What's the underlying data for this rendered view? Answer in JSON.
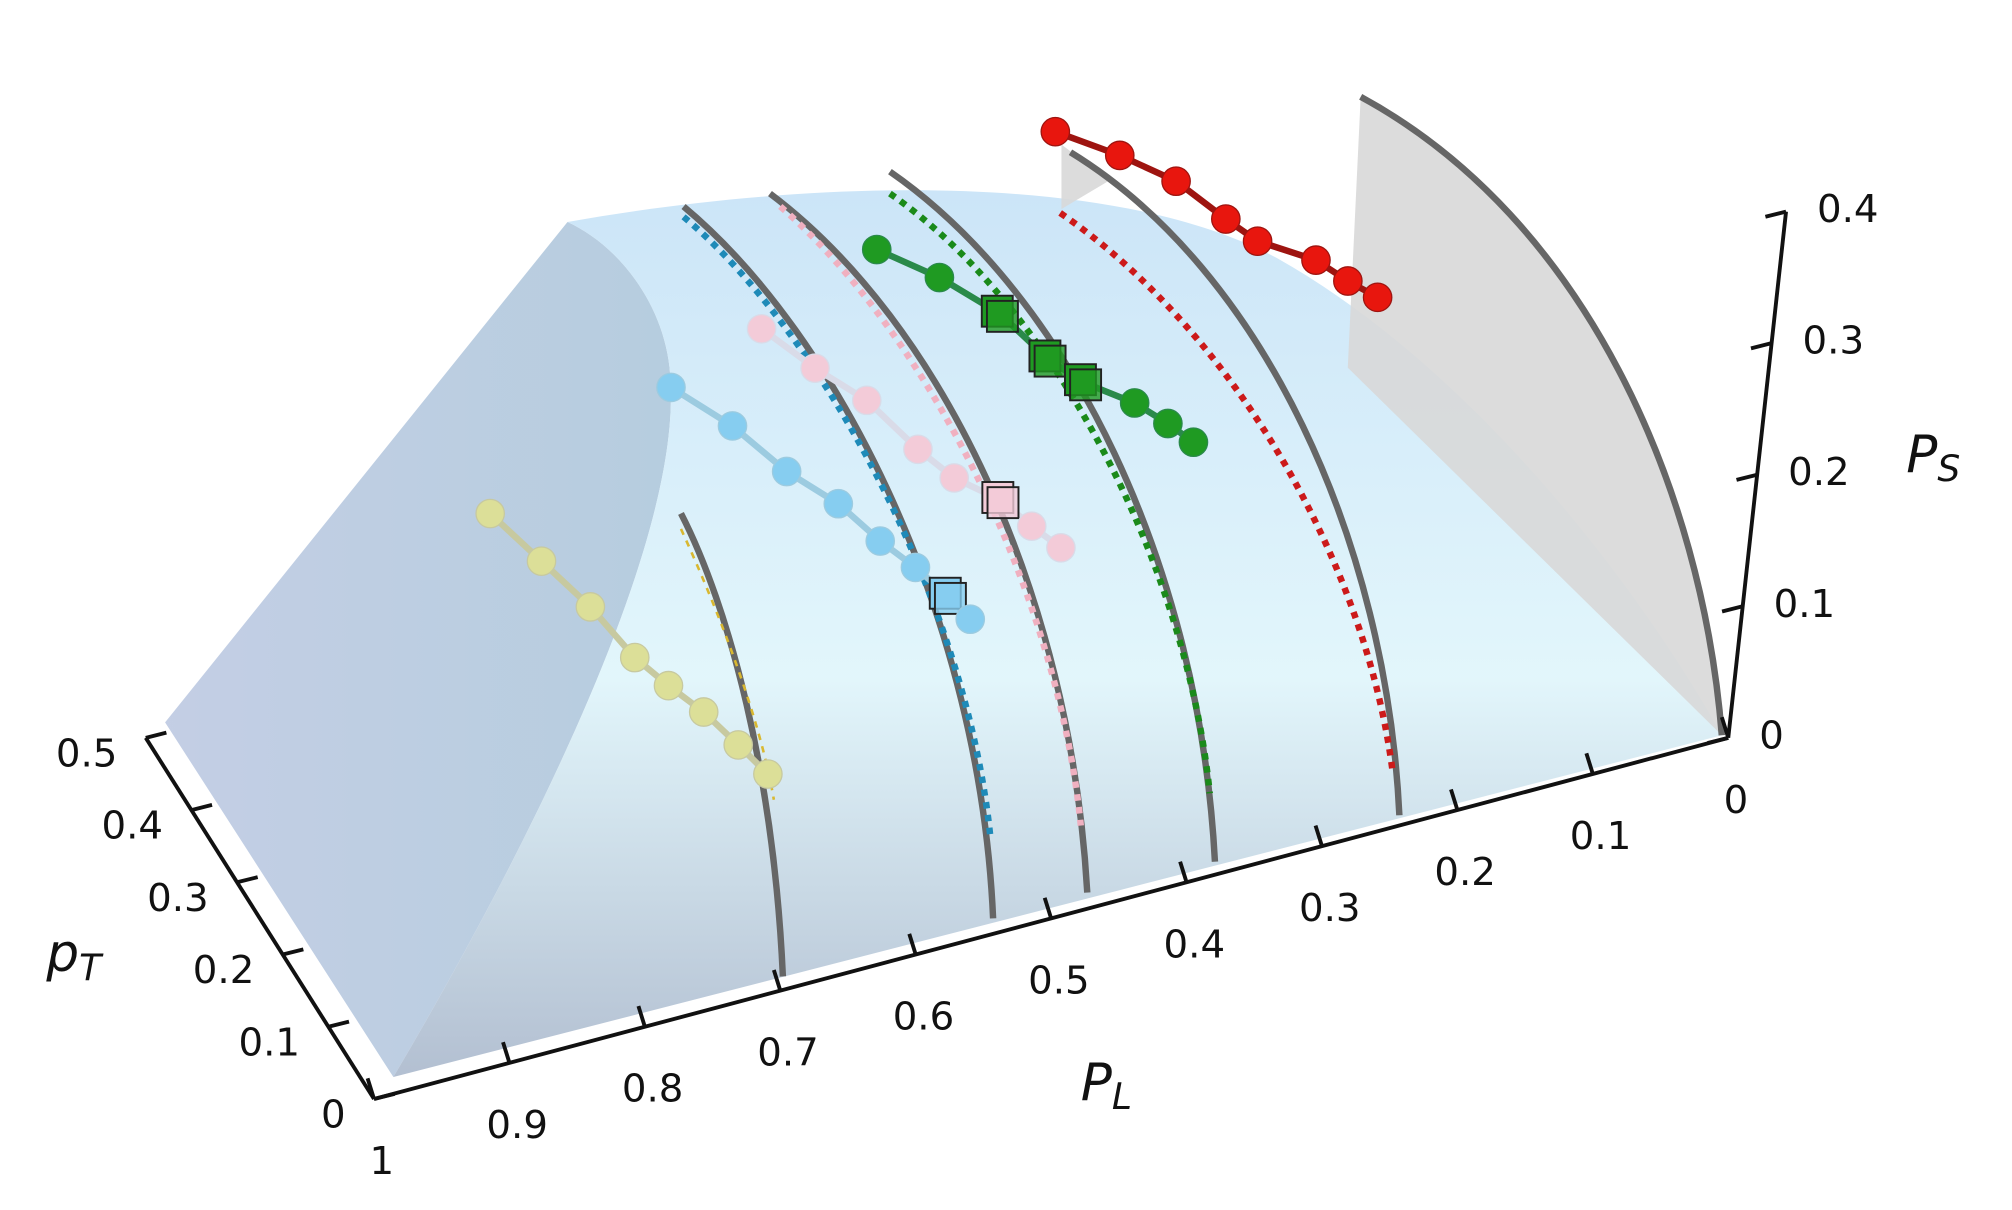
{
  "chart_data": {
    "type": "scatter3d",
    "xlabel": {
      "symbol": "P",
      "subscript": "L"
    },
    "ylabel": {
      "symbol": "p",
      "subscript": "T"
    },
    "zlabel": {
      "symbol": "P",
      "subscript": "S"
    },
    "xlim": [
      0,
      1
    ],
    "xticks": [
      0,
      0.1,
      0.2,
      0.3,
      0.4,
      0.5,
      0.6,
      0.7,
      0.8,
      0.9,
      1
    ],
    "ylim": [
      0,
      0.5
    ],
    "yticks": [
      0,
      0.1,
      0.2,
      0.3,
      0.4,
      0.5
    ],
    "zlim": [
      0,
      0.4
    ],
    "zticks": [
      0,
      0.1,
      0.2,
      0.3,
      0.4
    ],
    "series": [
      {
        "color": "#e8160e",
        "line_color": "#9e1410",
        "x": [
          0.481,
          0.43,
          0.385,
          0.344,
          0.318,
          0.272,
          0.246,
          0.222
        ],
        "y": [
          0.2,
          0.2,
          0.2,
          0.2,
          0.2,
          0.2,
          0.2,
          0.2
        ],
        "z": [
          0.483,
          0.451,
          0.419,
          0.379,
          0.355,
          0.328,
          0.305,
          0.286
        ],
        "markers": [
          "sphere",
          "sphere",
          "sphere",
          "sphere",
          "sphere",
          "sphere",
          "sphere",
          "sphere"
        ]
      },
      {
        "color": "#1f9a22",
        "line_color": "#2a8a4a",
        "x": [
          0.607,
          0.557,
          0.508,
          0.468,
          0.439,
          0.398,
          0.371,
          0.35
        ],
        "y": [
          0.2,
          0.2,
          0.2,
          0.2,
          0.2,
          0.2,
          0.2,
          0.2
        ],
        "z": [
          0.428,
          0.393,
          0.352,
          0.307,
          0.281,
          0.254,
          0.231,
          0.211
        ],
        "markers": [
          "sphere",
          "sphere",
          "cube",
          "cube",
          "cube",
          "sphere",
          "sphere",
          "sphere"
        ]
      },
      {
        "color": "#f3cbd8",
        "line_color": "#d9dbe8",
        "x": [
          0.688,
          0.644,
          0.602,
          0.559,
          0.529,
          0.492,
          0.466,
          0.442
        ],
        "y": [
          0.2,
          0.2,
          0.2,
          0.2,
          0.2,
          0.2,
          0.2,
          0.2
        ],
        "z": [
          0.39,
          0.348,
          0.312,
          0.263,
          0.233,
          0.206,
          0.179,
          0.156
        ],
        "markers": [
          "sphere",
          "sphere",
          "sphere",
          "sphere",
          "sphere",
          "cube",
          "sphere",
          "sphere"
        ]
      },
      {
        "color": "#86cdf0",
        "line_color": "#9ccbe0",
        "x": [
          0.752,
          0.702,
          0.657,
          0.615,
          0.58,
          0.551,
          0.524,
          0.505
        ],
        "y": [
          0.2,
          0.2,
          0.2,
          0.2,
          0.2,
          0.2,
          0.2,
          0.2
        ],
        "z": [
          0.363,
          0.32,
          0.273,
          0.237,
          0.199,
          0.171,
          0.142,
          0.119
        ],
        "markers": [
          "sphere",
          "sphere",
          "sphere",
          "sphere",
          "sphere",
          "sphere",
          "cube",
          "sphere"
        ]
      },
      {
        "color": "#dcdf98",
        "line_color": "#c7c9a0",
        "x": [
          0.879,
          0.836,
          0.795,
          0.757,
          0.729,
          0.7,
          0.671,
          0.646
        ],
        "y": [
          0.2,
          0.2,
          0.2,
          0.2,
          0.2,
          0.2,
          0.2,
          0.2
        ],
        "z": [
          0.302,
          0.254,
          0.208,
          0.159,
          0.13,
          0.102,
          0.069,
          0.04
        ],
        "markers": [
          "sphere",
          "sphere",
          "sphere",
          "sphere",
          "sphere",
          "sphere",
          "sphere",
          "sphere"
        ]
      }
    ]
  }
}
